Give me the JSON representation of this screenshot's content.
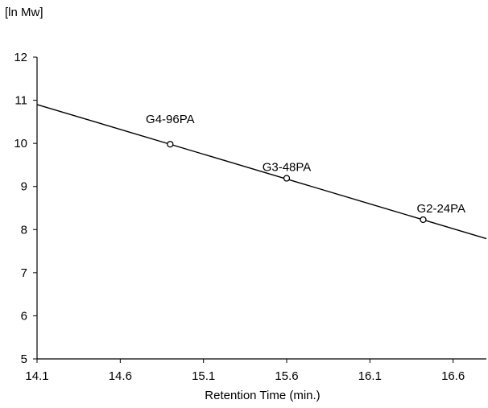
{
  "chart_data": {
    "type": "scatter",
    "ylabel": "[ln Mw]",
    "xlabel": "Retention Time (min.)",
    "xlim": [
      14.1,
      16.8
    ],
    "ylim": [
      5,
      12
    ],
    "xticks": [
      "14.1",
      "14.6",
      "15.1",
      "15.6",
      "16.1",
      "16.6"
    ],
    "yticks": [
      "5",
      "6",
      "7",
      "8",
      "9",
      "10",
      "11",
      "12"
    ],
    "grid": false,
    "points": [
      {
        "label": "G4-96PA",
        "x": 14.9,
        "y": 9.98
      },
      {
        "label": "G3-48PA",
        "x": 15.6,
        "y": 9.19
      },
      {
        "label": "G2-24PA",
        "x": 16.42,
        "y": 8.23
      }
    ],
    "fit_line": {
      "x": [
        14.1,
        16.8
      ],
      "y": [
        10.9,
        7.79
      ]
    }
  }
}
